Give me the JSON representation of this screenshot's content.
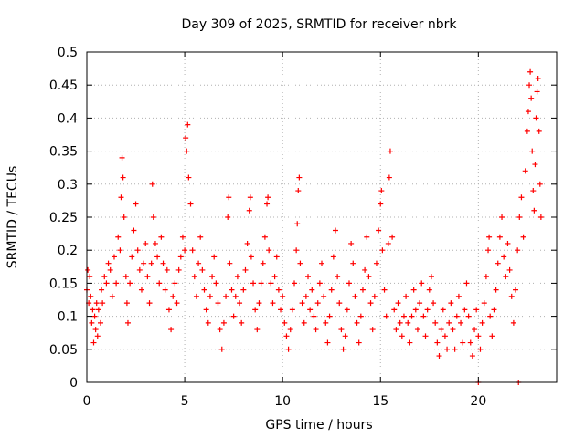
{
  "chart_data": {
    "type": "scatter",
    "title": "Day 309 of 2025, SRMTID for receiver nbrk",
    "xlabel": "GPS time / hours",
    "ylabel": "SRMTID / TECUs",
    "xlim": [
      0,
      24
    ],
    "ylim": [
      0,
      0.5
    ],
    "grid": true,
    "x_ticks": [
      0,
      5,
      10,
      15,
      20
    ],
    "x_tick_labels": [
      "0",
      "5",
      "10",
      "15",
      "20"
    ],
    "y_ticks": [
      0,
      0.05,
      0.1,
      0.15,
      0.2,
      0.25,
      0.3,
      0.35,
      0.4,
      0.45,
      0.5
    ],
    "y_tick_labels": [
      "0",
      "0.05",
      "0.1",
      "0.15",
      "0.2",
      "0.25",
      "0.3",
      "0.35",
      "0.4",
      "0.45",
      "0.5"
    ],
    "marker": "+",
    "color": "#ff0000",
    "series": [
      {
        "name": "SRMTID",
        "points": [
          [
            0.0,
            0.14
          ],
          [
            0.05,
            0.17
          ],
          [
            0.1,
            0.12
          ],
          [
            0.15,
            0.16
          ],
          [
            0.2,
            0.13
          ],
          [
            0.25,
            0.09
          ],
          [
            0.3,
            0.11
          ],
          [
            0.35,
            0.06
          ],
          [
            0.4,
            0.1
          ],
          [
            0.45,
            0.08
          ],
          [
            0.5,
            0.12
          ],
          [
            0.55,
            0.07
          ],
          [
            0.6,
            0.11
          ],
          [
            0.7,
            0.09
          ],
          [
            0.75,
            0.14
          ],
          [
            0.8,
            0.12
          ],
          [
            0.9,
            0.16
          ],
          [
            1.0,
            0.15
          ],
          [
            1.1,
            0.18
          ],
          [
            1.2,
            0.17
          ],
          [
            1.3,
            0.13
          ],
          [
            1.4,
            0.19
          ],
          [
            1.5,
            0.15
          ],
          [
            1.6,
            0.22
          ],
          [
            1.7,
            0.2
          ],
          [
            1.75,
            0.28
          ],
          [
            1.8,
            0.34
          ],
          [
            1.85,
            0.31
          ],
          [
            1.9,
            0.25
          ],
          [
            2.0,
            0.16
          ],
          [
            2.05,
            0.12
          ],
          [
            2.1,
            0.09
          ],
          [
            2.2,
            0.15
          ],
          [
            2.3,
            0.19
          ],
          [
            2.4,
            0.23
          ],
          [
            2.5,
            0.27
          ],
          [
            2.6,
            0.2
          ],
          [
            2.7,
            0.17
          ],
          [
            2.8,
            0.14
          ],
          [
            2.9,
            0.18
          ],
          [
            3.0,
            0.21
          ],
          [
            3.1,
            0.16
          ],
          [
            3.2,
            0.12
          ],
          [
            3.3,
            0.18
          ],
          [
            3.35,
            0.3
          ],
          [
            3.4,
            0.25
          ],
          [
            3.5,
            0.21
          ],
          [
            3.6,
            0.19
          ],
          [
            3.7,
            0.15
          ],
          [
            3.8,
            0.22
          ],
          [
            3.9,
            0.18
          ],
          [
            4.0,
            0.14
          ],
          [
            4.1,
            0.17
          ],
          [
            4.2,
            0.11
          ],
          [
            4.3,
            0.08
          ],
          [
            4.4,
            0.13
          ],
          [
            4.5,
            0.15
          ],
          [
            4.6,
            0.12
          ],
          [
            4.7,
            0.17
          ],
          [
            4.8,
            0.19
          ],
          [
            4.9,
            0.22
          ],
          [
            5.0,
            0.2
          ],
          [
            5.05,
            0.37
          ],
          [
            5.1,
            0.35
          ],
          [
            5.15,
            0.39
          ],
          [
            5.2,
            0.31
          ],
          [
            5.3,
            0.27
          ],
          [
            5.4,
            0.2
          ],
          [
            5.5,
            0.16
          ],
          [
            5.6,
            0.13
          ],
          [
            5.7,
            0.18
          ],
          [
            5.8,
            0.22
          ],
          [
            5.9,
            0.17
          ],
          [
            6.0,
            0.14
          ],
          [
            6.1,
            0.11
          ],
          [
            6.2,
            0.09
          ],
          [
            6.3,
            0.13
          ],
          [
            6.4,
            0.16
          ],
          [
            6.5,
            0.19
          ],
          [
            6.6,
            0.15
          ],
          [
            6.7,
            0.12
          ],
          [
            6.8,
            0.08
          ],
          [
            6.9,
            0.05
          ],
          [
            7.0,
            0.09
          ],
          [
            7.1,
            0.13
          ],
          [
            7.2,
            0.25
          ],
          [
            7.25,
            0.28
          ],
          [
            7.3,
            0.18
          ],
          [
            7.4,
            0.14
          ],
          [
            7.5,
            0.1
          ],
          [
            7.6,
            0.13
          ],
          [
            7.7,
            0.16
          ],
          [
            7.8,
            0.12
          ],
          [
            7.9,
            0.09
          ],
          [
            8.0,
            0.14
          ],
          [
            8.1,
            0.17
          ],
          [
            8.2,
            0.21
          ],
          [
            8.3,
            0.26
          ],
          [
            8.35,
            0.28
          ],
          [
            8.4,
            0.19
          ],
          [
            8.5,
            0.15
          ],
          [
            8.6,
            0.11
          ],
          [
            8.7,
            0.08
          ],
          [
            8.8,
            0.12
          ],
          [
            8.9,
            0.15
          ],
          [
            9.0,
            0.18
          ],
          [
            9.1,
            0.22
          ],
          [
            9.2,
            0.27
          ],
          [
            9.25,
            0.28
          ],
          [
            9.3,
            0.2
          ],
          [
            9.4,
            0.15
          ],
          [
            9.5,
            0.12
          ],
          [
            9.6,
            0.16
          ],
          [
            9.7,
            0.19
          ],
          [
            9.8,
            0.14
          ],
          [
            9.9,
            0.11
          ],
          [
            10.0,
            0.13
          ],
          [
            10.1,
            0.09
          ],
          [
            10.2,
            0.07
          ],
          [
            10.3,
            0.05
          ],
          [
            10.4,
            0.08
          ],
          [
            10.5,
            0.11
          ],
          [
            10.6,
            0.15
          ],
          [
            10.7,
            0.2
          ],
          [
            10.75,
            0.24
          ],
          [
            10.8,
            0.29
          ],
          [
            10.85,
            0.31
          ],
          [
            10.9,
            0.18
          ],
          [
            11.0,
            0.12
          ],
          [
            11.1,
            0.09
          ],
          [
            11.2,
            0.13
          ],
          [
            11.3,
            0.16
          ],
          [
            11.4,
            0.11
          ],
          [
            11.5,
            0.14
          ],
          [
            11.6,
            0.1
          ],
          [
            11.7,
            0.08
          ],
          [
            11.8,
            0.12
          ],
          [
            11.9,
            0.15
          ],
          [
            12.0,
            0.18
          ],
          [
            12.1,
            0.13
          ],
          [
            12.2,
            0.09
          ],
          [
            12.3,
            0.06
          ],
          [
            12.4,
            0.1
          ],
          [
            12.5,
            0.14
          ],
          [
            12.6,
            0.19
          ],
          [
            12.7,
            0.23
          ],
          [
            12.8,
            0.16
          ],
          [
            12.9,
            0.12
          ],
          [
            13.0,
            0.08
          ],
          [
            13.1,
            0.05
          ],
          [
            13.2,
            0.07
          ],
          [
            13.3,
            0.11
          ],
          [
            13.4,
            0.15
          ],
          [
            13.5,
            0.21
          ],
          [
            13.6,
            0.18
          ],
          [
            13.7,
            0.13
          ],
          [
            13.8,
            0.09
          ],
          [
            13.9,
            0.06
          ],
          [
            14.0,
            0.1
          ],
          [
            14.1,
            0.14
          ],
          [
            14.2,
            0.17
          ],
          [
            14.3,
            0.22
          ],
          [
            14.4,
            0.16
          ],
          [
            14.5,
            0.12
          ],
          [
            14.6,
            0.08
          ],
          [
            14.7,
            0.13
          ],
          [
            14.8,
            0.18
          ],
          [
            14.9,
            0.23
          ],
          [
            15.0,
            0.27
          ],
          [
            15.05,
            0.29
          ],
          [
            15.1,
            0.2
          ],
          [
            15.2,
            0.14
          ],
          [
            15.3,
            0.1
          ],
          [
            15.4,
            0.21
          ],
          [
            15.45,
            0.31
          ],
          [
            15.5,
            0.35
          ],
          [
            15.6,
            0.22
          ],
          [
            15.7,
            0.11
          ],
          [
            15.8,
            0.08
          ],
          [
            15.9,
            0.12
          ],
          [
            16.0,
            0.09
          ],
          [
            16.1,
            0.07
          ],
          [
            16.2,
            0.1
          ],
          [
            16.3,
            0.13
          ],
          [
            16.4,
            0.09
          ],
          [
            16.5,
            0.06
          ],
          [
            16.6,
            0.1
          ],
          [
            16.7,
            0.14
          ],
          [
            16.8,
            0.11
          ],
          [
            16.9,
            0.08
          ],
          [
            17.0,
            0.12
          ],
          [
            17.1,
            0.15
          ],
          [
            17.2,
            0.1
          ],
          [
            17.3,
            0.07
          ],
          [
            17.4,
            0.11
          ],
          [
            17.5,
            0.14
          ],
          [
            17.6,
            0.16
          ],
          [
            17.7,
            0.12
          ],
          [
            17.8,
            0.09
          ],
          [
            17.9,
            0.06
          ],
          [
            18.0,
            0.04
          ],
          [
            18.1,
            0.08
          ],
          [
            18.2,
            0.11
          ],
          [
            18.3,
            0.07
          ],
          [
            18.4,
            0.05
          ],
          [
            18.5,
            0.09
          ],
          [
            18.6,
            0.12
          ],
          [
            18.7,
            0.08
          ],
          [
            18.8,
            0.05
          ],
          [
            18.9,
            0.1
          ],
          [
            19.0,
            0.13
          ],
          [
            19.1,
            0.09
          ],
          [
            19.2,
            0.06
          ],
          [
            19.3,
            0.11
          ],
          [
            19.4,
            0.15
          ],
          [
            19.5,
            0.1
          ],
          [
            19.6,
            0.06
          ],
          [
            19.7,
            0.04
          ],
          [
            19.8,
            0.08
          ],
          [
            19.9,
            0.11
          ],
          [
            20.0,
            0.07
          ],
          [
            20.0,
            0.0
          ],
          [
            20.1,
            0.05
          ],
          [
            20.2,
            0.09
          ],
          [
            20.3,
            0.12
          ],
          [
            20.4,
            0.16
          ],
          [
            20.5,
            0.2
          ],
          [
            20.55,
            0.22
          ],
          [
            20.6,
            0.1
          ],
          [
            20.7,
            0.07
          ],
          [
            20.8,
            0.11
          ],
          [
            20.9,
            0.14
          ],
          [
            21.0,
            0.18
          ],
          [
            21.1,
            0.22
          ],
          [
            21.2,
            0.25
          ],
          [
            21.3,
            0.19
          ],
          [
            21.4,
            0.16
          ],
          [
            21.5,
            0.21
          ],
          [
            21.6,
            0.17
          ],
          [
            21.7,
            0.13
          ],
          [
            21.8,
            0.09
          ],
          [
            21.9,
            0.14
          ],
          [
            22.0,
            0.2
          ],
          [
            22.05,
            0.0
          ],
          [
            22.1,
            0.25
          ],
          [
            22.2,
            0.28
          ],
          [
            22.3,
            0.22
          ],
          [
            22.4,
            0.32
          ],
          [
            22.5,
            0.38
          ],
          [
            22.55,
            0.41
          ],
          [
            22.6,
            0.45
          ],
          [
            22.65,
            0.47
          ],
          [
            22.7,
            0.43
          ],
          [
            22.75,
            0.35
          ],
          [
            22.8,
            0.29
          ],
          [
            22.85,
            0.26
          ],
          [
            22.9,
            0.33
          ],
          [
            22.95,
            0.4
          ],
          [
            23.0,
            0.44
          ],
          [
            23.05,
            0.46
          ],
          [
            23.1,
            0.38
          ],
          [
            23.15,
            0.3
          ],
          [
            23.2,
            0.25
          ]
        ]
      }
    ]
  }
}
